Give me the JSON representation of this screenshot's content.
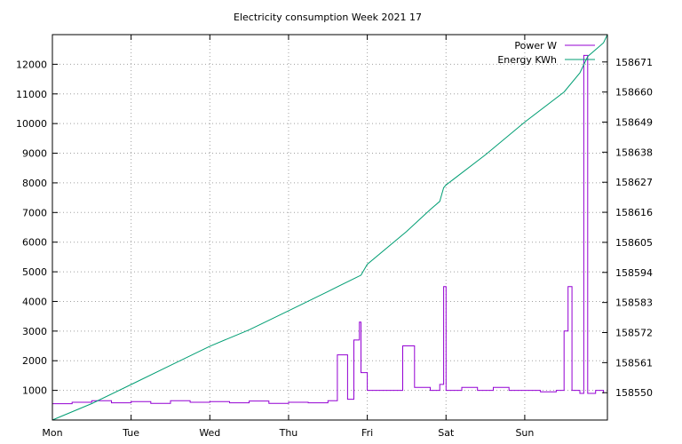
{
  "chart_data": {
    "type": "line",
    "title": "Electricity consumption Week 2021 17",
    "xlabel": "",
    "ylabel": "",
    "y2label": "",
    "grid": true,
    "legend_position": "top-right",
    "x_ticks": [
      "Mon",
      "Tue",
      "Wed",
      "Thu",
      "Fri",
      "Sat",
      "Sun"
    ],
    "x_range": [
      0,
      7.05
    ],
    "y_ticks": [
      1000,
      2000,
      3000,
      4000,
      5000,
      6000,
      7000,
      8000,
      9000,
      10000,
      11000,
      12000
    ],
    "y_range": [
      0,
      13000
    ],
    "y2_ticks": [
      158550,
      158561,
      158572,
      158583,
      158594,
      158605,
      158616,
      158627,
      158638,
      158649,
      158660,
      158671
    ],
    "y2_range": [
      158540,
      158681
    ],
    "series": [
      {
        "name": "Power W",
        "axis": "left",
        "color": "#9400d3",
        "x": [
          0.0,
          0.25,
          0.5,
          0.75,
          1.0,
          1.25,
          1.5,
          1.75,
          2.0,
          2.25,
          2.5,
          2.75,
          3.0,
          3.25,
          3.5,
          3.62,
          3.75,
          3.83,
          3.9,
          3.92,
          4.0,
          4.2,
          4.4,
          4.45,
          4.6,
          4.8,
          4.92,
          4.97,
          5.0,
          5.2,
          5.4,
          5.6,
          5.8,
          6.0,
          6.2,
          6.4,
          6.5,
          6.55,
          6.6,
          6.7,
          6.75,
          6.8,
          6.9,
          7.0
        ],
        "values": [
          550,
          600,
          650,
          580,
          620,
          560,
          650,
          600,
          620,
          580,
          640,
          560,
          600,
          580,
          650,
          2200,
          700,
          2700,
          3300,
          1600,
          1000,
          1000,
          1000,
          2500,
          1100,
          1000,
          1200,
          4500,
          1000,
          1100,
          1000,
          1100,
          1000,
          1000,
          950,
          1000,
          3000,
          4500,
          1000,
          900,
          12300,
          900,
          1000,
          900
        ]
      },
      {
        "name": "Energy KWh",
        "axis": "right",
        "color": "#009e73",
        "x": [
          0.0,
          0.5,
          1.0,
          1.5,
          2.0,
          2.5,
          3.0,
          3.5,
          3.85,
          3.92,
          4.0,
          4.5,
          4.8,
          4.92,
          4.97,
          5.0,
          5.5,
          6.0,
          6.5,
          6.7,
          6.8,
          7.0,
          7.05
        ],
        "values": [
          158540,
          158546,
          158553,
          158560,
          158567,
          158573,
          158580,
          158587,
          158592,
          158593,
          158597,
          158609,
          158617,
          158620,
          158625,
          158626,
          158637,
          158649,
          158660,
          158667,
          158673,
          158678,
          158681
        ]
      }
    ]
  }
}
